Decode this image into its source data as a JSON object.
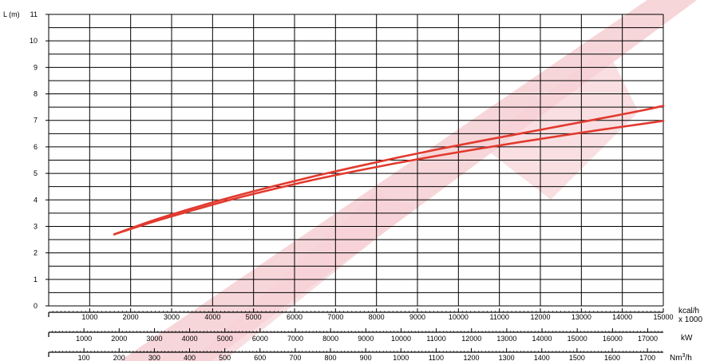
{
  "chart_data": {
    "type": "line",
    "ylabel": "L (m)",
    "ylim": [
      0,
      11
    ],
    "y_ticks": [
      "0",
      "1",
      "2",
      "3",
      "4",
      "5",
      "6",
      "7",
      "8",
      "9",
      "10",
      "11"
    ],
    "xlim": [
      0,
      15000
    ],
    "grid": true,
    "axes": [
      {
        "unit": "kcal/h",
        "unit2": "x 1000",
        "range": [
          0,
          15000
        ],
        "ticks": [
          1000,
          2000,
          3000,
          4000,
          5000,
          6000,
          7000,
          8000,
          9000,
          10000,
          11000,
          12000,
          13000,
          14000,
          15000
        ],
        "tick_labels": [
          "1000",
          "2000",
          "3000",
          "4000",
          "5000",
          "6000",
          "7000",
          "8000",
          "9000",
          "10000",
          "11000",
          "12000",
          "13000",
          "14000",
          "15000"
        ]
      },
      {
        "unit": "kW",
        "range": [
          0,
          17442
        ],
        "ticks": [
          1000,
          2000,
          3000,
          4000,
          5000,
          6000,
          7000,
          8000,
          9000,
          10000,
          11000,
          12000,
          13000,
          14000,
          15000,
          16000,
          17000
        ],
        "tick_labels": [
          "1000",
          "2000",
          "3000",
          "4000",
          "5000",
          "6000",
          "7000",
          "8000",
          "9000",
          "10000",
          "11000",
          "12000",
          "13000",
          "14000",
          "15000",
          "16000",
          "17000"
        ]
      },
      {
        "unit": "Nm",
        "unit_sup": "3",
        "unit_tail": "/h",
        "range": [
          0,
          1745
        ],
        "ticks": [
          100,
          200,
          300,
          400,
          500,
          600,
          700,
          800,
          900,
          1000,
          1100,
          1200,
          1300,
          1400,
          1500,
          1600,
          1700
        ],
        "tick_labels": [
          "100",
          "200",
          "300",
          "400",
          "500",
          "600",
          "700",
          "800",
          "900",
          "1000",
          "1100",
          "1200",
          "1300",
          "1400",
          "1500",
          "1600",
          "1700"
        ]
      }
    ],
    "series": [
      {
        "x": [
          1600,
          2500,
          3500,
          4500,
          5500,
          6500,
          7500,
          8500,
          9500,
          10500,
          11500,
          12500,
          13500,
          14500,
          15000
        ],
        "y": [
          2.7,
          3.2,
          3.68,
          4.12,
          4.52,
          4.9,
          5.25,
          5.59,
          5.91,
          6.21,
          6.5,
          6.79,
          7.08,
          7.38,
          7.55
        ]
      },
      {
        "x": [
          1600,
          2500,
          3500,
          4500,
          5500,
          6500,
          7500,
          8500,
          9500,
          10500,
          11500,
          12500,
          13500,
          14500,
          15000
        ],
        "y": [
          2.7,
          3.15,
          3.6,
          4.03,
          4.41,
          4.77,
          5.09,
          5.39,
          5.67,
          5.93,
          6.18,
          6.42,
          6.65,
          6.87,
          6.98
        ]
      }
    ],
    "series_color": "#e23a2e",
    "watermark_color": "#f6d2d5"
  }
}
